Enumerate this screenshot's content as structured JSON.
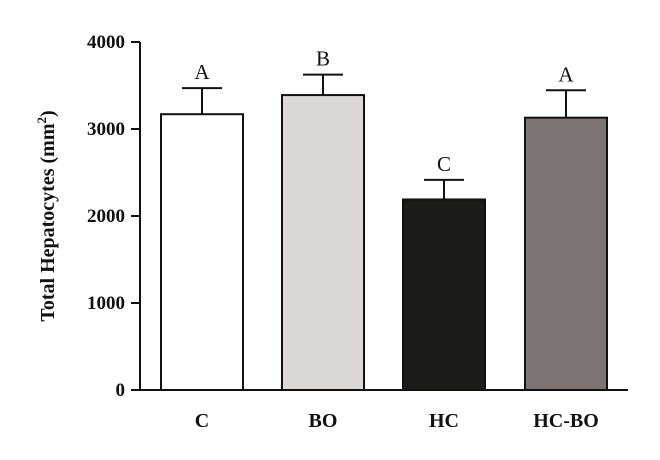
{
  "chart_data": {
    "type": "bar",
    "ylabel": "Total Hepatocytes (mm",
    "ylabel_superscript": "2",
    "ylabel_suffix": ")",
    "ylim": [
      0,
      4000
    ],
    "yticks": [
      "0",
      "1000",
      "2000",
      "3000",
      "4000"
    ],
    "ytick_values": [
      0,
      1000,
      2000,
      3000,
      4000
    ],
    "categories": [
      "C",
      "BO",
      "HC",
      "HC-BO"
    ],
    "values": [
      3170,
      3390,
      2190,
      3130
    ],
    "errors": [
      300,
      235,
      225,
      315
    ],
    "significance": [
      "A",
      "B",
      "C",
      "A"
    ],
    "bar_colors": [
      "#ffffff",
      "#dcd8d8",
      "#1b1c19",
      "#7c7573"
    ],
    "grid": false
  }
}
